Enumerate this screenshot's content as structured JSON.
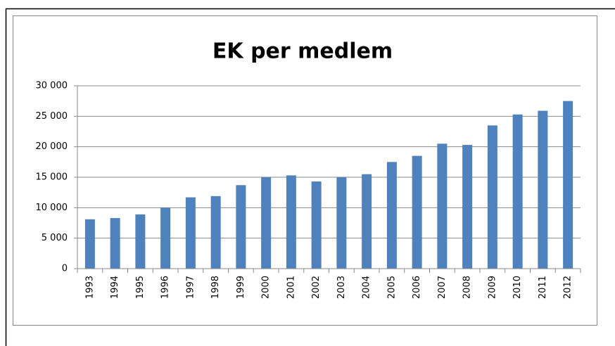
{
  "chart_data": {
    "type": "bar",
    "title": "EK per medlem",
    "categories": [
      "1993",
      "1994",
      "1995",
      "1996",
      "1997",
      "1998",
      "1999",
      "2000",
      "2001",
      "2002",
      "2003",
      "2004",
      "2005",
      "2006",
      "2007",
      "2008",
      "2009",
      "2010",
      "2011",
      "2012"
    ],
    "values": [
      8100,
      8300,
      8900,
      10000,
      11700,
      11900,
      13700,
      15000,
      15300,
      14300,
      15000,
      15500,
      17500,
      18500,
      20500,
      20300,
      23500,
      25300,
      25900,
      27500
    ],
    "color": "#4f81bd",
    "ylim": [
      0,
      30000
    ],
    "yticks": [
      0,
      {
        "value": 5000,
        "label": "5 000"
      },
      {
        "value": 10000,
        "label": "10 000"
      },
      {
        "value": 15000,
        "label": "15 000"
      },
      {
        "value": 20000,
        "label": "20 000"
      },
      {
        "value": 25000,
        "label": "25 000"
      },
      {
        "value": 30000,
        "label": "30 000"
      }
    ],
    "grid": true
  }
}
